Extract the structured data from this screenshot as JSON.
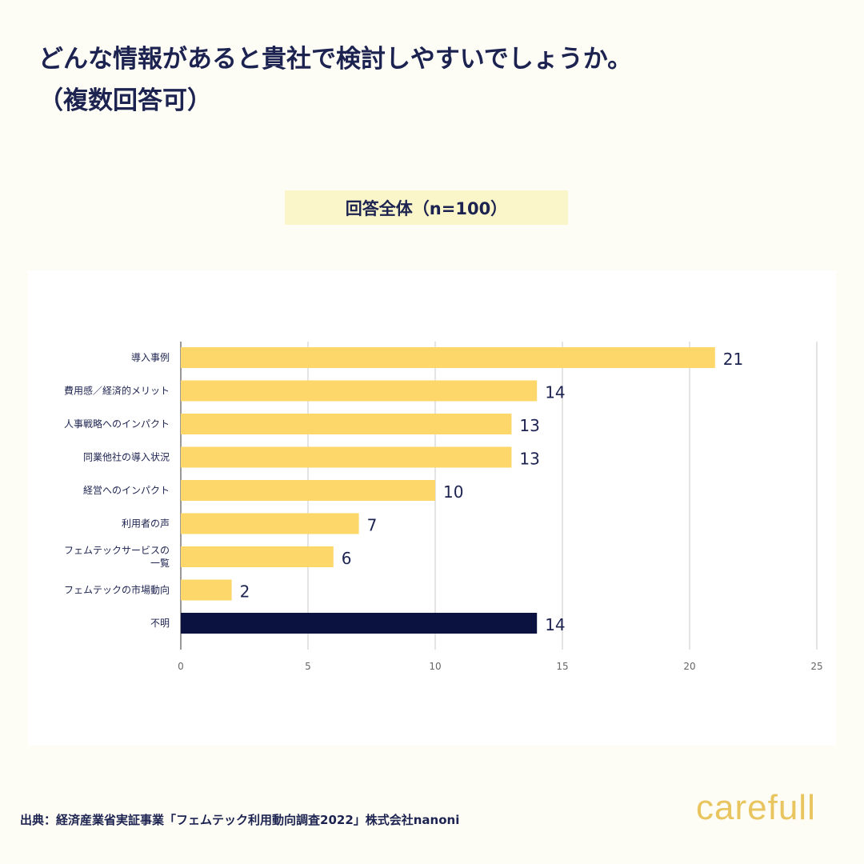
{
  "title": "どんな情報があると貴社で検討しやすいでしょうか。\n（複数回答可）",
  "chart_data": {
    "type": "bar",
    "orientation": "horizontal",
    "title": "回答全体（n=100）",
    "categories": [
      "導入事例",
      "費用感／経済的メリット",
      "人事戦略へのインパクト",
      "同業他社の導入状況",
      "経営へのインパクト",
      "利用者の声",
      "フェムテックサービスの\n一覧",
      "フェムテックの市場動向",
      "不明"
    ],
    "values": [
      21,
      14,
      13,
      13,
      10,
      7,
      6,
      2,
      14
    ],
    "colors": [
      "#fdd76a",
      "#fdd76a",
      "#fdd76a",
      "#fdd76a",
      "#fdd76a",
      "#fdd76a",
      "#fdd76a",
      "#fdd76a",
      "#0b1240"
    ],
    "xlim": [
      0,
      25
    ],
    "xticks": [
      0,
      5,
      10,
      15,
      20,
      25
    ],
    "grid": true
  },
  "source": "出典：経済産業省実証事業「フェムテック利用動向調査2022」株式会社nanoni",
  "logo": "carefull"
}
